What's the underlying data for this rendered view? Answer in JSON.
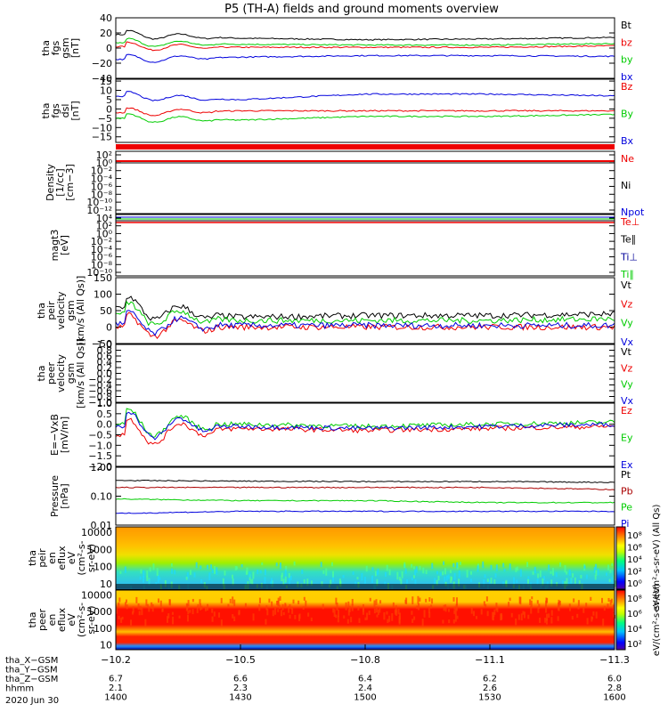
{
  "title": "P5 (TH-A) fields and ground moments overview",
  "colors": {
    "black": "#000000",
    "red": "#ee0000",
    "green": "#00cc00",
    "blue": "#0000dd",
    "navy": "#000099",
    "darkred": "#aa0000"
  },
  "panels": [
    {
      "ylabel": [
        "tha",
        "fgs",
        "gsm",
        "[nT]"
      ],
      "ticks": [
        "40",
        "20",
        "0",
        "−20",
        "−40"
      ],
      "tick_vals": [
        40,
        20,
        0,
        -20,
        -40
      ],
      "ylim": [
        -40,
        40
      ],
      "legend": [
        {
          "label": "Bt",
          "color": "black"
        },
        {
          "label": "bz",
          "color": "red"
        },
        {
          "label": "by",
          "color": "green"
        },
        {
          "label": "bx",
          "color": "blue"
        }
      ]
    },
    {
      "ylabel": [
        "tha",
        "fgs",
        "dsl",
        "[nT]"
      ],
      "ticks": [
        "15",
        "10",
        "5",
        "0",
        "−5",
        "−10",
        "−15"
      ],
      "tick_vals": [
        15,
        10,
        5,
        0,
        -5,
        -10,
        -15
      ],
      "ylim": [
        -18,
        16
      ],
      "legend": [
        {
          "label": "Bz",
          "color": "red"
        },
        {
          "label": "By",
          "color": "green"
        },
        {
          "label": "Bx",
          "color": "blue"
        }
      ]
    },
    {
      "ylabel": [
        "Density",
        "[1/cc]",
        "[cm−3]"
      ],
      "ticks": [
        "10²",
        "10⁰",
        "10⁻²",
        "10⁻⁴",
        "10⁻⁶",
        "10⁻⁸",
        "10⁻¹⁰",
        "10⁻¹²"
      ],
      "legend": [
        {
          "label": "Ne",
          "color": "red"
        },
        {
          "label": "Ni",
          "color": "black"
        },
        {
          "label": "Npot",
          "color": "blue"
        }
      ]
    },
    {
      "ylabel": [
        "magt3",
        "[eV]"
      ],
      "ticks": [
        "10⁴",
        "10²",
        "10⁰",
        "10⁻²",
        "10⁻⁴",
        "10⁻⁶",
        "10⁻⁸",
        "10⁻¹⁰"
      ],
      "legend": [
        {
          "label": "Te⊥",
          "color": "red"
        },
        {
          "label": "Te∥",
          "color": "black"
        },
        {
          "label": "Ti⊥",
          "color": "navy"
        },
        {
          "label": "Ti∥",
          "color": "green"
        }
      ]
    },
    {
      "ylabel": [
        "tha",
        "peir",
        "velocity",
        "gsm",
        "[km/s (All Qs)]"
      ],
      "ticks": [
        "150",
        "100",
        "50",
        "0",
        "−50"
      ],
      "tick_vals": [
        150,
        100,
        50,
        0,
        -50
      ],
      "ylim": [
        -50,
        150
      ],
      "legend": [
        {
          "label": "Vt",
          "color": "black"
        },
        {
          "label": "Vz",
          "color": "red"
        },
        {
          "label": "Vy",
          "color": "green"
        },
        {
          "label": "Vx",
          "color": "blue"
        }
      ]
    },
    {
      "ylabel": [
        "tha",
        "peer",
        "velocity",
        "gsm",
        "[km/s (All Qs)]"
      ],
      "ticks": [
        "1.0",
        "0.8",
        "0.6",
        "0.4",
        "0.2",
        "0.0",
        "−0.2",
        "−0.4",
        "−0.6",
        "−0.8",
        "−1.0"
      ],
      "tick_vals": [
        1.0,
        0.8,
        0.6,
        0.4,
        0.2,
        0.0,
        -0.2,
        -0.4,
        -0.6,
        -0.8,
        -1.0
      ],
      "ylim": [
        -1.0,
        1.0
      ],
      "legend": [
        {
          "label": "Vt",
          "color": "black"
        },
        {
          "label": "Vz",
          "color": "red"
        },
        {
          "label": "Vy",
          "color": "green"
        },
        {
          "label": "Vx",
          "color": "blue"
        }
      ]
    },
    {
      "ylabel": [
        "E=−VxB",
        "[mV/m]"
      ],
      "ticks": [
        "1.0",
        "0.5",
        "0.0",
        "−0.5",
        "−1.0",
        "−1.5",
        "−2.0"
      ],
      "tick_vals": [
        1.0,
        0.5,
        0.0,
        -0.5,
        -1.0,
        -1.5,
        -2.0
      ],
      "ylim": [
        -2.0,
        1.0
      ],
      "legend": [
        {
          "label": "Ez",
          "color": "red"
        },
        {
          "label": "Ey",
          "color": "green"
        },
        {
          "label": "Ex",
          "color": "blue"
        }
      ]
    },
    {
      "ylabel": [
        "Pressure",
        "[nPa]"
      ],
      "ticks": [
        "1.00",
        "0.10",
        "0.01"
      ],
      "tick_vals": [
        1.0,
        0.1,
        0.01
      ],
      "ylim": [
        0.01,
        1.0
      ],
      "log": true,
      "legend": [
        {
          "label": "Pt",
          "color": "black"
        },
        {
          "label": "Pb",
          "color": "darkred"
        },
        {
          "label": "Pe",
          "color": "green"
        },
        {
          "label": "Pi",
          "color": "blue"
        }
      ]
    },
    {
      "ylabel": [
        "tha",
        "peir",
        "en",
        "eflux",
        "eV",
        "(cm²-s-",
        "sr-eV)"
      ],
      "ticks": [
        "10000",
        "1000",
        "100",
        "10"
      ],
      "tick_vals": [
        10000,
        1000,
        100,
        10
      ],
      "ylim": [
        5,
        20000
      ],
      "log": true,
      "legend": []
    },
    {
      "ylabel": [
        "tha",
        "peer",
        "en",
        "eflux",
        "eV",
        "(cm²-s-",
        "sr-eV)"
      ],
      "ticks": [
        "10000",
        "1000",
        "100",
        "10"
      ],
      "tick_vals": [
        10000,
        1000,
        100,
        10
      ],
      "ylim": [
        5,
        20000
      ],
      "log": true,
      "legend": []
    }
  ],
  "colorbars": [
    {
      "label": "eV/(cm²-s-sr-eV) (All Qs)",
      "ticks": [
        "10⁸",
        "10⁶",
        "10⁴",
        "10²",
        "10⁰"
      ]
    },
    {
      "label": "eV/(cm²-s-sr-eV)",
      "ticks": [
        "10⁸",
        "10⁶",
        "10⁴",
        "10²"
      ]
    }
  ],
  "xaxis": {
    "tick_labels": [
      "−10.2",
      "−10.5",
      "−10.8",
      "−11.1",
      "−11.3"
    ],
    "rows": [
      {
        "label": "tha_X−GSM",
        "values": [
          "",
          "",
          "",
          "",
          ""
        ]
      },
      {
        "label": "tha_Y−GSM",
        "values": [
          "6.7",
          "6.6",
          "6.4",
          "6.2",
          "6.0"
        ]
      },
      {
        "label": "tha_Z−GSM",
        "values": [
          "2.1",
          "2.3",
          "2.4",
          "2.6",
          "2.8"
        ]
      },
      {
        "label": "hhmm",
        "values": [
          "1400",
          "1430",
          "1500",
          "1530",
          "1600"
        ]
      }
    ],
    "date": "2020 Jun 30"
  },
  "chart_data": {
    "type": "line",
    "title": "P5 (TH-A) fields and ground moments overview",
    "x_label": "hhmm",
    "x": [
      "1400",
      "1430",
      "1500",
      "1530",
      "1600"
    ],
    "series": [
      {
        "name": "Bt",
        "panel": 0,
        "values": [
          18,
          13,
          11,
          12,
          14
        ]
      },
      {
        "name": "bz",
        "panel": 0,
        "values": [
          2,
          1,
          1,
          1,
          3
        ]
      },
      {
        "name": "by",
        "panel": 0,
        "values": [
          7,
          5,
          4,
          4,
          6
        ]
      },
      {
        "name": "bx",
        "panel": 0,
        "values": [
          -15,
          -12,
          -10,
          -10,
          -11
        ]
      },
      {
        "name": "Bz",
        "panel": 1,
        "values": [
          -2,
          -1,
          -1,
          -1,
          -1
        ]
      },
      {
        "name": "By",
        "panel": 1,
        "values": [
          -5,
          -6,
          -4,
          -4,
          -3
        ]
      },
      {
        "name": "Bx",
        "panel": 1,
        "values": [
          7,
          5,
          8,
          8,
          7
        ]
      },
      {
        "name": "Vt",
        "panel": 4,
        "values": [
          60,
          30,
          35,
          35,
          40
        ]
      },
      {
        "name": "Vz",
        "panel": 4,
        "values": [
          0,
          0,
          0,
          0,
          0
        ]
      },
      {
        "name": "Vy",
        "panel": 4,
        "values": [
          40,
          20,
          20,
          20,
          25
        ]
      },
      {
        "name": "Vx",
        "panel": 4,
        "values": [
          10,
          5,
          5,
          5,
          5
        ]
      },
      {
        "name": "Ez",
        "panel": 6,
        "values": [
          -0.5,
          -0.2,
          -0.3,
          -0.2,
          -0.1
        ]
      },
      {
        "name": "Ey",
        "panel": 6,
        "values": [
          0.0,
          0.0,
          -0.1,
          0.0,
          0.1
        ]
      },
      {
        "name": "Ex",
        "panel": 6,
        "values": [
          -0.1,
          -0.1,
          -0.2,
          -0.1,
          0.0
        ]
      },
      {
        "name": "Pt",
        "panel": 7,
        "values": [
          0.35,
          0.33,
          0.32,
          0.32,
          0.3
        ]
      },
      {
        "name": "Pb",
        "panel": 7,
        "values": [
          0.2,
          0.2,
          0.2,
          0.2,
          0.17
        ]
      },
      {
        "name": "Pe",
        "panel": 7,
        "values": [
          0.08,
          0.07,
          0.07,
          0.06,
          0.06
        ]
      },
      {
        "name": "Pi",
        "panel": 7,
        "values": [
          0.025,
          0.03,
          0.03,
          0.03,
          0.03
        ]
      }
    ]
  }
}
